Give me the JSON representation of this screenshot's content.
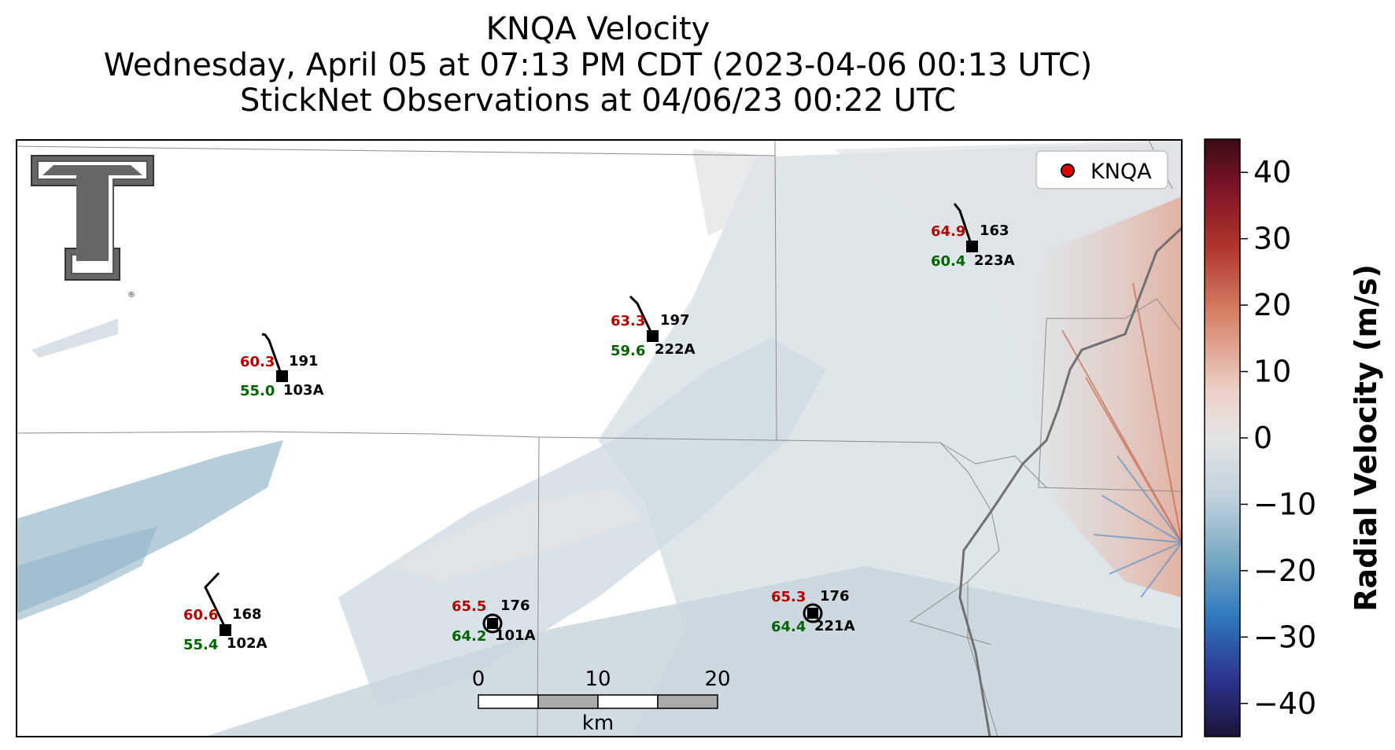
{
  "title": {
    "line1": "KNQA Velocity",
    "line2": "Wednesday, April 05 at 07:13 PM CDT (2023-04-06 00:13 UTC)",
    "line3": "StickNet Observations at 04/06/23 00:22 UTC"
  },
  "legend": {
    "label": "KNQA",
    "marker_color": "#e00000"
  },
  "scale_bar": {
    "ticks": [
      "0",
      "10",
      "20"
    ],
    "unit": "km"
  },
  "colorbar": {
    "label": "Radial Velocity (m/s)",
    "ticks": [
      "40",
      "30",
      "20",
      "10",
      "0",
      "−10",
      "−20",
      "−30",
      "−40"
    ],
    "range": [
      -45,
      45
    ],
    "colors": [
      "#1a1438",
      "#2b2f8f",
      "#2166c2",
      "#3f8fc0",
      "#8ab6cc",
      "#c7d6df",
      "#e6e6e6",
      "#e8c6bb",
      "#d98e77",
      "#c4522e",
      "#a01b2b",
      "#4a0a14"
    ]
  },
  "stations": [
    {
      "id": "103A",
      "temp": "60.3",
      "dew": "55.0",
      "dir": "191"
    },
    {
      "id": "222A",
      "temp": "63.3",
      "dew": "59.6",
      "dir": "197"
    },
    {
      "id": "223A",
      "temp": "64.9",
      "dew": "60.4",
      "dir": "163"
    },
    {
      "id": "102A",
      "temp": "60.6",
      "dew": "55.4",
      "dir": "168"
    },
    {
      "id": "101A",
      "temp": "65.5",
      "dew": "64.2",
      "dir": "176"
    },
    {
      "id": "221A",
      "temp": "65.3",
      "dew": "64.4",
      "dir": "176"
    }
  ],
  "colors": {
    "temp": "#b30000",
    "dew": "#006400"
  }
}
